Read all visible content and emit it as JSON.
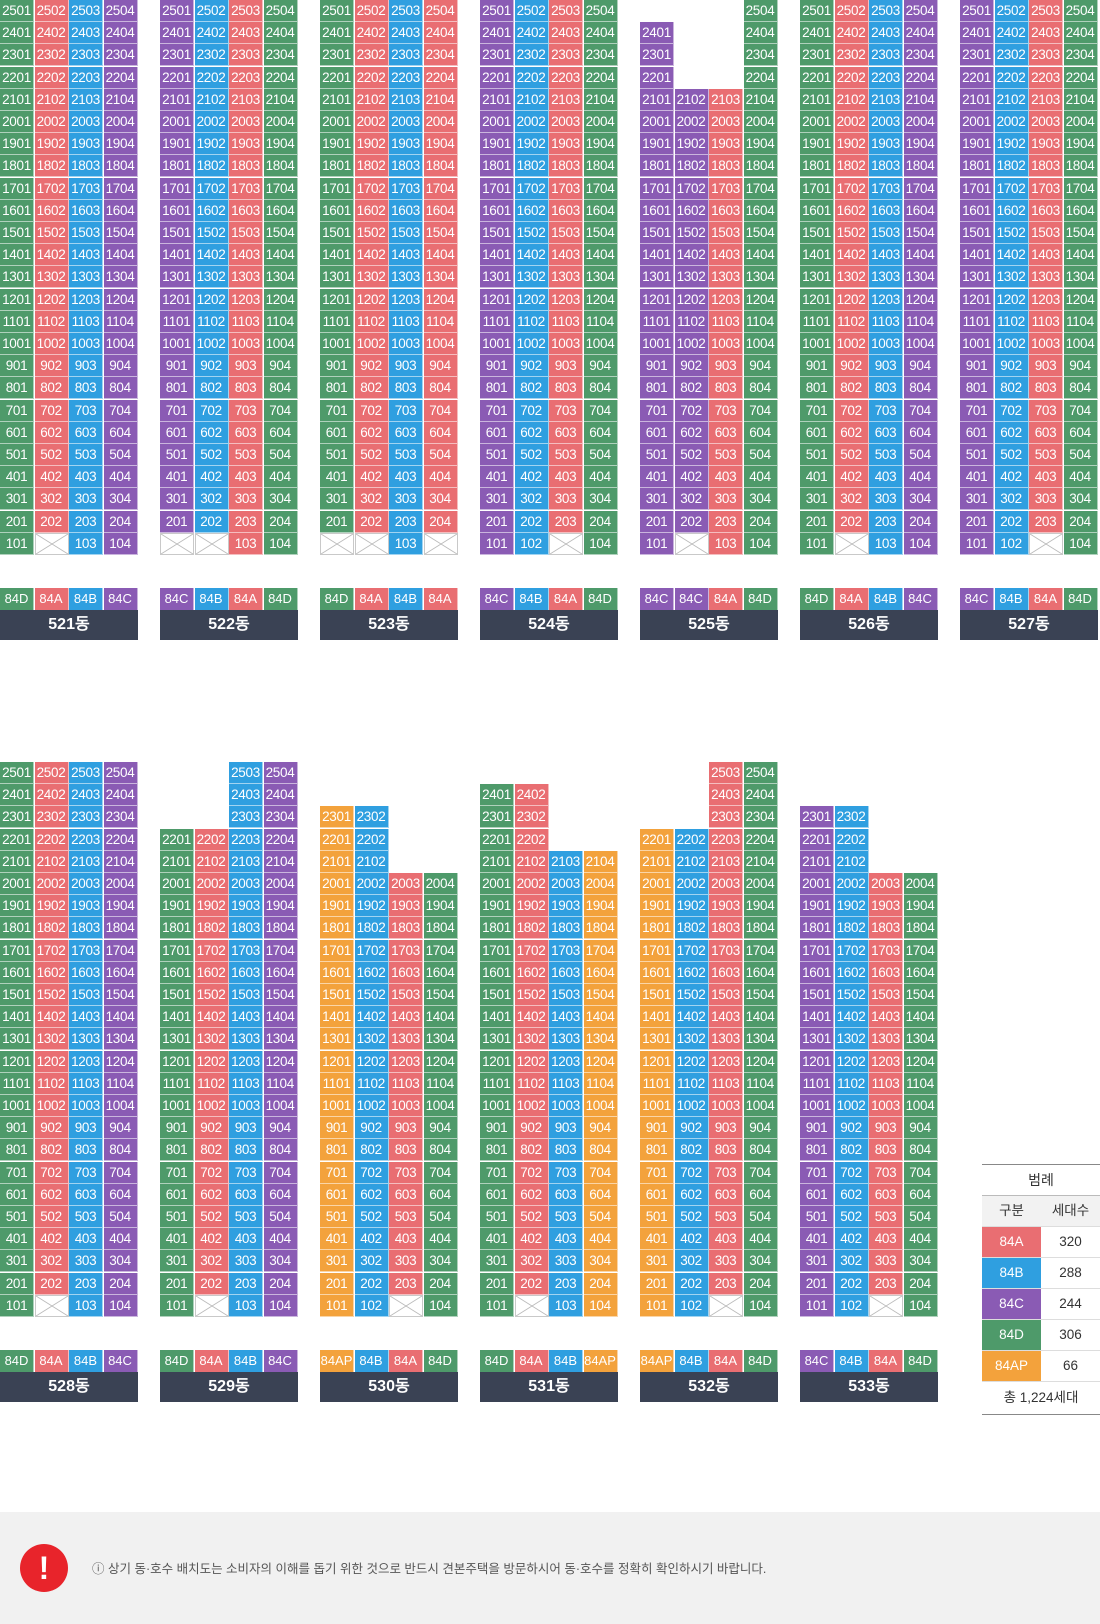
{
  "colors": {
    "84A": "#e96e72",
    "84B": "#2f9fe0",
    "84C": "#8a5bb4",
    "84D": "#4e9a6a",
    "84AP": "#f3a23c"
  },
  "buildings": [
    {
      "name": "521동",
      "floors": 25,
      "cols": [
        "84D",
        "84A",
        "84B",
        "84C"
      ],
      "types": [
        "84D",
        "84A",
        "84B",
        "84C"
      ],
      "missing": [],
      "empty": [
        "102"
      ]
    },
    {
      "name": "522동",
      "floors": 25,
      "cols": [
        "84C",
        "84B",
        "84A",
        "84D"
      ],
      "types": [
        "84C",
        "84B",
        "84A",
        "84D"
      ],
      "missing": [],
      "empty": [
        "101",
        "102"
      ]
    },
    {
      "name": "523동",
      "floors": 25,
      "cols": [
        "84D",
        "84A",
        "84B",
        "84A"
      ],
      "types": [
        "84D",
        "84A",
        "84B",
        "84A"
      ],
      "missing": [],
      "empty": [
        "101",
        "102",
        "104"
      ]
    },
    {
      "name": "524동",
      "floors": 25,
      "cols": [
        "84C",
        "84B",
        "84A",
        "84D"
      ],
      "types": [
        "84C",
        "84B",
        "84A",
        "84D"
      ],
      "missing": [],
      "empty": [
        "103"
      ]
    },
    {
      "name": "525동",
      "floors": 25,
      "cols": [
        "84C",
        "84C",
        "84A",
        "84D"
      ],
      "types": [
        "84C",
        "84C",
        "84A",
        "84D"
      ],
      "missing": [
        {
          "col": 1,
          "above": 24
        },
        {
          "col": 2,
          "above": 21
        },
        {
          "col": 3,
          "above": 21
        }
      ],
      "empty": [
        "102"
      ]
    },
    {
      "name": "526동",
      "floors": 25,
      "cols": [
        "84D",
        "84A",
        "84B",
        "84C"
      ],
      "types": [
        "84D",
        "84A",
        "84B",
        "84C"
      ],
      "missing": [],
      "empty": [
        "102"
      ]
    },
    {
      "name": "527동",
      "floors": 25,
      "cols": [
        "84C",
        "84B",
        "84A",
        "84D"
      ],
      "types": [
        "84C",
        "84B",
        "84A",
        "84D"
      ],
      "missing": [],
      "empty": [
        "103"
      ]
    },
    {
      "name": "528동",
      "floors": 25,
      "cols": [
        "84D",
        "84A",
        "84B",
        "84C"
      ],
      "types": [
        "84D",
        "84A",
        "84B",
        "84C"
      ],
      "missing": [],
      "empty": [
        "102"
      ]
    },
    {
      "name": "529동",
      "floors": 25,
      "cols": [
        "84D",
        "84A",
        "84B",
        "84C"
      ],
      "types": [
        "84D",
        "84A",
        "84B",
        "84C"
      ],
      "missing": [
        {
          "col": 1,
          "above": 22
        },
        {
          "col": 2,
          "above": 22
        }
      ],
      "empty": [
        "102"
      ]
    },
    {
      "name": "530동",
      "floors": 25,
      "cols": [
        "84AP",
        "84B",
        "84A",
        "84D"
      ],
      "types": [
        "84AP",
        "84B",
        "84A",
        "84D"
      ],
      "missing": [
        {
          "col": 1,
          "above": 23
        },
        {
          "col": 2,
          "above": 23
        },
        {
          "col": 3,
          "above": 20
        },
        {
          "col": 4,
          "above": 20
        }
      ],
      "empty": [
        "103"
      ]
    },
    {
      "name": "531동",
      "floors": 25,
      "cols": [
        "84D",
        "84A",
        "84B",
        "84AP"
      ],
      "types": [
        "84D",
        "84A",
        "84B",
        "84AP"
      ],
      "missing": [
        {
          "col": 1,
          "above": 24
        },
        {
          "col": 2,
          "above": 24
        },
        {
          "col": 3,
          "above": 21
        },
        {
          "col": 4,
          "above": 21
        }
      ],
      "empty": [
        "102"
      ]
    },
    {
      "name": "532동",
      "floors": 25,
      "cols": [
        "84AP",
        "84B",
        "84A",
        "84D"
      ],
      "types": [
        "84AP",
        "84B",
        "84A",
        "84D"
      ],
      "missing": [
        {
          "col": 1,
          "above": 22
        },
        {
          "col": 2,
          "above": 22
        }
      ],
      "empty": [
        "103"
      ]
    },
    {
      "name": "533동",
      "floors": 25,
      "cols": [
        "84C",
        "84B",
        "84A",
        "84D"
      ],
      "types": [
        "84C",
        "84B",
        "84A",
        "84D"
      ],
      "missing": [
        {
          "col": 1,
          "above": 23
        },
        {
          "col": 2,
          "above": 23
        },
        {
          "col": 3,
          "above": 20
        },
        {
          "col": 4,
          "above": 20
        }
      ],
      "empty": [
        "103"
      ]
    }
  ],
  "legend": {
    "title": "범례",
    "col1": "구분",
    "col2": "세대수",
    "rows": [
      {
        "type": "84A",
        "count": "320"
      },
      {
        "type": "84B",
        "count": "288"
      },
      {
        "type": "84C",
        "count": "244"
      },
      {
        "type": "84D",
        "count": "306"
      },
      {
        "type": "84AP",
        "count": "66"
      }
    ],
    "total": "총 1,224세대"
  },
  "notice": {
    "icon": "!",
    "text": "ⓘ 상기 동·호수 배치도는 소비자의 이해를 돕기 위한 것으로 반드시 견본주택을 방문하시어 동·호수를 정확히 확인하시기 바랍니다."
  }
}
